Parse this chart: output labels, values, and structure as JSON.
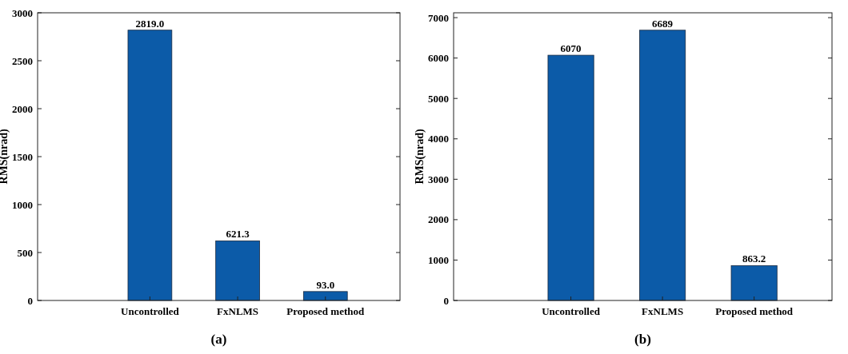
{
  "chart_data": [
    {
      "type": "bar",
      "ylabel": "RMS(nrad)",
      "categories": [
        "Uncontrolled",
        "FxNLMS",
        "Proposed method"
      ],
      "values": [
        2819.0,
        621.3,
        93.0
      ],
      "value_labels": [
        "2819.0",
        "621.3",
        "93.0"
      ],
      "color": "#0c5ba8",
      "ylim": [
        0,
        3000
      ],
      "yticks": [
        0,
        500,
        1000,
        1500,
        2000,
        2500,
        3000
      ],
      "grid": false,
      "annotations": [
        "(a)"
      ]
    },
    {
      "type": "bar",
      "ylabel": "RMS(nrad)",
      "categories": [
        "Uncontrolled",
        "FxNLMS",
        "Proposed method"
      ],
      "values": [
        6070,
        6689,
        863.2
      ],
      "value_labels": [
        "6070",
        "6689",
        "863.2"
      ],
      "color": "#0c5ba8",
      "ylim": [
        0,
        7120
      ],
      "yticks": [
        0,
        1000,
        2000,
        3000,
        4000,
        5000,
        6000,
        7000
      ],
      "grid": false,
      "annotations": [
        "(b)"
      ]
    }
  ]
}
